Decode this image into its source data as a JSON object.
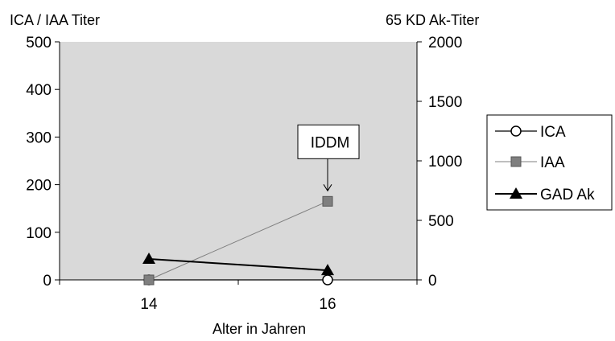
{
  "chart_data": {
    "type": "line",
    "title": "",
    "y_left_label": "ICA / IAA Titer",
    "y_right_label": "65 KD Ak-Titer",
    "xlabel": "Alter in Jahren",
    "x_range": [
      13,
      17
    ],
    "x_ticks": [
      14,
      16
    ],
    "x_minor_ticks": [
      13,
      14,
      15,
      16,
      17
    ],
    "y_left_range": [
      0,
      500
    ],
    "y_left_ticks": [
      0,
      100,
      200,
      300,
      400,
      500
    ],
    "y_right_range": [
      0,
      2000
    ],
    "y_right_ticks": [
      0,
      500,
      1000,
      1500,
      2000
    ],
    "grid": false,
    "plot_background": "#d9d9d9",
    "legend_position": "right",
    "series": [
      {
        "name": "ICA",
        "axis": "left",
        "marker": "circle-open",
        "color": "#000000",
        "line_width": 1.2,
        "points": [
          {
            "x": 14,
            "y": 0
          },
          {
            "x": 16,
            "y": 0
          }
        ]
      },
      {
        "name": "IAA",
        "axis": "left",
        "marker": "square",
        "color": "#7f7f7f",
        "line_width": 1,
        "points": [
          {
            "x": 14,
            "y": 0
          },
          {
            "x": 16,
            "y": 165
          }
        ]
      },
      {
        "name": "GAD Ak",
        "axis": "left",
        "marker": "triangle",
        "color": "#000000",
        "line_width": 2,
        "points": [
          {
            "x": 14,
            "y": 44
          },
          {
            "x": 16,
            "y": 20
          }
        ]
      }
    ],
    "annotations": [
      {
        "text": "IDDM",
        "x": 16,
        "y": 165,
        "arrow": true
      }
    ]
  }
}
